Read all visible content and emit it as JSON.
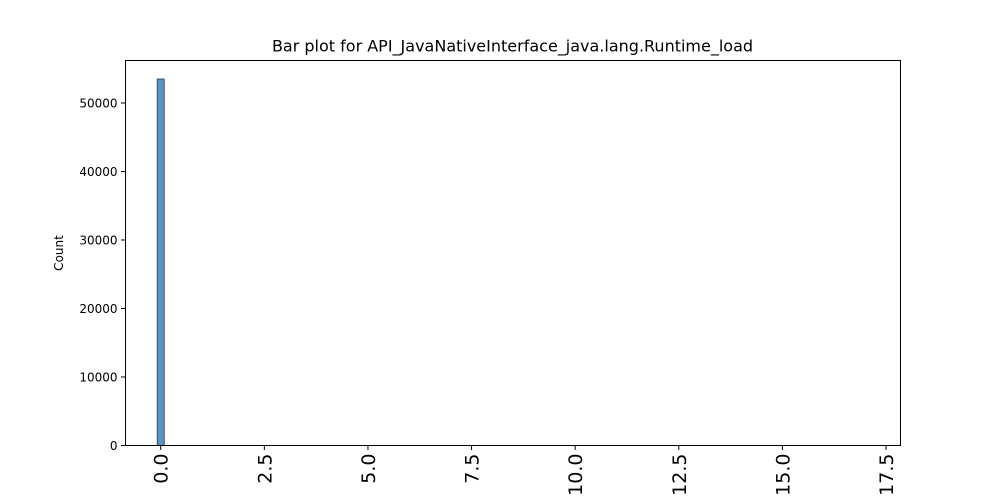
{
  "chart_data": {
    "type": "bar",
    "title": "Bar plot for API_JavaNativeInterface_java.lang.Runtime_load",
    "xlabel": "",
    "ylabel": "Count",
    "xlim": [
      -0.85,
      17.85
    ],
    "ylim": [
      0,
      56200
    ],
    "x_ticks": [
      0.0,
      2.5,
      5.0,
      7.5,
      10.0,
      12.5,
      15.0,
      17.5
    ],
    "x_tick_labels": [
      "0.0",
      "2.5",
      "5.0",
      "7.5",
      "10.0",
      "12.5",
      "15.0",
      "17.5"
    ],
    "y_ticks": [
      0,
      10000,
      20000,
      30000,
      40000,
      50000
    ],
    "y_tick_labels": [
      "0",
      "10000",
      "20000",
      "30000",
      "40000",
      "50000"
    ],
    "bar_width": 0.17,
    "bars": [
      {
        "x": 0.0,
        "value": 53500
      }
    ],
    "grid": false,
    "legend": false,
    "colors": {
      "bar_fill": "#5b93c1",
      "bar_edge": "#1f3b57",
      "axis": "#000000"
    }
  }
}
